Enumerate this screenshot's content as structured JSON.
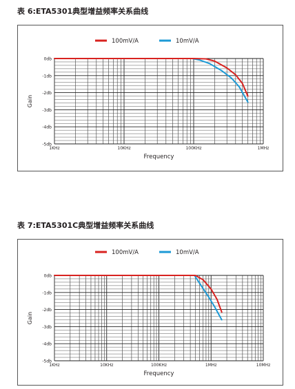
{
  "page": {
    "heading_1": "表 6:ETA5301典型增益频率关系曲线",
    "heading_2": "表 7:ETA5301C典型增益频率关系曲线"
  },
  "chart_data": [
    {
      "type": "line",
      "xscale": "log",
      "x_ticks": [
        1000,
        10000,
        100000,
        1000000
      ],
      "x_tick_labels": [
        "1KHz",
        "10KHz",
        "100KHz",
        "1MHz"
      ],
      "xlim": [
        1000,
        1000000
      ],
      "ylim": [
        -5,
        0
      ],
      "y_ticks": [
        0,
        -1,
        -2,
        -3,
        -4,
        -5
      ],
      "y_tick_labels": [
        "0db",
        "-1db",
        "-2db",
        "-3db",
        "-4db",
        "-5db"
      ],
      "xlabel": "Frequency",
      "ylabel": "Gain",
      "grid": true,
      "legend_position": "top",
      "series": [
        {
          "name": "100mV/A",
          "color": "#d8221f",
          "x": [
            1000,
            100000,
            150000,
            200000,
            300000,
            400000,
            500000,
            600000
          ],
          "y": [
            0,
            0,
            -0.02,
            -0.15,
            -0.55,
            -0.95,
            -1.45,
            -2.2
          ]
        },
        {
          "name": "10mV/A",
          "color": "#1c9ad6",
          "x": [
            1000,
            95000,
            120000,
            170000,
            250000,
            350000,
            450000,
            600000
          ],
          "y": [
            0,
            0,
            -0.08,
            -0.3,
            -0.7,
            -1.15,
            -1.65,
            -2.55
          ]
        }
      ]
    },
    {
      "type": "line",
      "xscale": "log",
      "x_ticks": [
        1000,
        10000,
        100000,
        1000000,
        10000000
      ],
      "x_tick_labels": [
        "1KHz",
        "10KHz",
        "100KHz",
        "1MHz",
        "10MHz"
      ],
      "xlim": [
        1000,
        10000000
      ],
      "ylim": [
        -5,
        0
      ],
      "y_ticks": [
        0,
        -1,
        -2,
        -3,
        -4,
        -5
      ],
      "y_tick_labels": [
        "0db",
        "-1db",
        "-2db",
        "-3db",
        "-4db",
        "-5db"
      ],
      "xlabel": "Frequency",
      "ylabel": "Gain",
      "grid": true,
      "legend_position": "top",
      "series": [
        {
          "name": "100mV/A",
          "color": "#d8221f",
          "x": [
            1000,
            500000,
            700000,
            1000000,
            1300000,
            1600000
          ],
          "y": [
            0,
            0,
            -0.25,
            -0.8,
            -1.4,
            -2.15
          ]
        },
        {
          "name": "10mV/A",
          "color": "#1c9ad6",
          "x": [
            1000,
            480000,
            600000,
            850000,
            1150000,
            1600000
          ],
          "y": [
            0,
            0,
            -0.45,
            -1.15,
            -1.8,
            -2.6
          ]
        }
      ]
    }
  ]
}
